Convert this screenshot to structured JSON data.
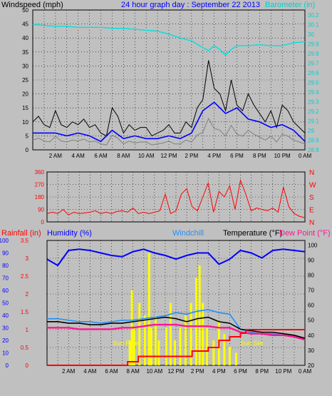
{
  "header": {
    "windspeed_label": "Windspeed (mph)",
    "title": "24 hour graph day : September 22 2013",
    "barometer_label": "Barometer (in)"
  },
  "dir_labels": [
    "N",
    "W",
    "S",
    "E",
    "N"
  ],
  "bottom_header": {
    "rainfall_label": "Rainfall (in)",
    "humidity_label": "Humidity (%)",
    "windchill_label": "Windchill",
    "temperature_label": "Temperature (°F)",
    "dewpoint_label": "Dew Point (°F)"
  },
  "annotations": {
    "sunrise": "Sun Rise",
    "sunset": "Sun Set"
  },
  "time_ticks": [
    "2 AM",
    "4 AM",
    "6 AM",
    "8 AM",
    "10 AM",
    "12 PM",
    "2 PM",
    "4 PM",
    "6 PM",
    "8 PM",
    "10 PM",
    "0 AM"
  ],
  "colors": {
    "windspeed": "#000000",
    "windavg": "#0000ff",
    "wind_low": "#808080",
    "barometer": "#00e0e0",
    "direction": "#ff0000",
    "humidity": "#0000ff",
    "windchill": "#1e90ff",
    "temperature": "#000000",
    "dewpoint": "#ff1493",
    "rainfall": "#ff0000",
    "solar": "#ffff00"
  },
  "chart_data": [
    {
      "type": "line",
      "title": "24 hour graph day : September 22 2013",
      "ylabel": "Windspeed (mph)",
      "y2label": "Barometer (in)",
      "x_range": [
        0,
        24
      ],
      "ylim": [
        0,
        50
      ],
      "y_ticks": [
        0,
        5,
        10,
        15,
        20,
        25,
        30,
        35,
        40,
        45,
        50
      ],
      "y2lim": [
        28.8,
        30.25
      ],
      "y2_ticks": [
        "28.8",
        "28.9",
        "29",
        "29.1",
        "29.2",
        "29.3",
        "29.4",
        "29.5",
        "29.6",
        "29.7",
        "29.8",
        "29.9",
        "30",
        "30.1",
        "30.2"
      ],
      "grid": true,
      "series": [
        {
          "name": "Windspeed (mph)",
          "axis": "left",
          "x": [
            0,
            0.5,
            1,
            1.5,
            2,
            2.5,
            3,
            3.5,
            4,
            4.5,
            5,
            5.5,
            6,
            6.5,
            7,
            7.5,
            8,
            8.5,
            9,
            9.5,
            10,
            10.5,
            11,
            11.5,
            12,
            12.5,
            13,
            13.5,
            14,
            14.5,
            15,
            15.5,
            16,
            16.5,
            17,
            17.5,
            18,
            18.5,
            19,
            19.5,
            20,
            20.5,
            21,
            21.5,
            22,
            22.5,
            23,
            23.5,
            24
          ],
          "values": [
            10,
            12,
            9,
            8,
            14,
            9,
            8,
            10,
            9,
            11,
            8,
            9,
            6,
            5,
            15,
            12,
            6,
            9,
            7,
            8,
            8,
            5,
            6,
            7,
            9,
            6,
            6,
            10,
            8,
            15,
            18,
            32,
            22,
            20,
            14,
            25,
            16,
            14,
            20,
            16,
            13,
            10,
            14,
            8,
            16,
            14,
            10,
            8,
            6
          ]
        },
        {
          "name": "Wind average",
          "axis": "left",
          "x": [
            0,
            1,
            2,
            3,
            4,
            5,
            6,
            7,
            8,
            9,
            10,
            11,
            12,
            13,
            14,
            15,
            16,
            17,
            18,
            19,
            20,
            21,
            22,
            23,
            24
          ],
          "values": [
            6,
            6,
            6,
            5,
            6,
            5,
            3,
            7,
            4,
            5,
            4,
            4,
            5,
            4,
            6,
            14,
            17,
            13,
            15,
            11,
            10,
            8,
            9,
            7,
            3
          ]
        },
        {
          "name": "Barometer (in)",
          "axis": "right",
          "x": [
            0,
            1,
            2,
            3,
            4,
            5,
            6,
            7,
            8,
            9,
            10,
            11,
            12,
            13,
            14,
            15,
            15.5,
            16,
            16.5,
            17,
            17.5,
            18,
            19,
            20,
            21,
            22,
            23,
            24
          ],
          "values": [
            30.1,
            30.09,
            30.08,
            30.08,
            30.07,
            30.07,
            30.07,
            30.06,
            30.06,
            30.05,
            30.04,
            30.03,
            30.0,
            29.96,
            29.93,
            29.86,
            29.83,
            29.88,
            29.84,
            29.78,
            29.84,
            29.88,
            29.88,
            29.89,
            29.88,
            29.88,
            29.91,
            29.92
          ]
        }
      ]
    },
    {
      "type": "line",
      "ylabel": "Wind direction",
      "ylim": [
        0,
        360
      ],
      "y_ticks": [
        0,
        90,
        180,
        270,
        360
      ],
      "x_range": [
        0,
        24
      ],
      "series": [
        {
          "name": "Direction",
          "x": [
            0,
            0.5,
            1,
            1.5,
            2,
            2.5,
            3,
            3.5,
            4,
            4.5,
            5,
            5.5,
            6,
            6.5,
            7,
            7.5,
            8,
            8.5,
            9,
            9.5,
            10,
            10.5,
            11,
            11.5,
            12,
            12.5,
            13,
            13.5,
            14,
            14.5,
            15,
            15.5,
            16,
            16.5,
            17,
            17.5,
            18,
            18.5,
            19,
            19.5,
            20,
            20.5,
            21,
            21.5,
            22,
            22.5,
            23,
            23.5,
            24
          ],
          "values": [
            60,
            70,
            60,
            90,
            50,
            70,
            60,
            65,
            70,
            80,
            60,
            70,
            60,
            75,
            80,
            70,
            100,
            60,
            70,
            60,
            70,
            80,
            200,
            60,
            80,
            200,
            240,
            110,
            80,
            180,
            280,
            70,
            220,
            180,
            260,
            90,
            300,
            200,
            80,
            100,
            90,
            80,
            100,
            70,
            250,
            110,
            60,
            40,
            30
          ]
        }
      ]
    },
    {
      "type": "line",
      "x_range": [
        0,
        24
      ],
      "y_left_ticks": [
        "0",
        "0.5",
        "1",
        "1.5",
        "2",
        "2.5",
        "3",
        "3.5"
      ],
      "y_humidity_ticks": [
        "0",
        "10",
        "20",
        "30",
        "40",
        "50",
        "60",
        "70",
        "80",
        "90",
        "100"
      ],
      "y_temp_ticks": [
        "20",
        "30",
        "40",
        "50",
        "60",
        "70",
        "80",
        "90",
        "100"
      ],
      "series": [
        {
          "name": "Humidity (%)",
          "axis": "humidity",
          "x": [
            0,
            1,
            2,
            3,
            4,
            5,
            6,
            7,
            8,
            9,
            10,
            11,
            12,
            13,
            14,
            15,
            16,
            17,
            18,
            19,
            20,
            21,
            22,
            23,
            24
          ],
          "values": [
            85,
            80,
            92,
            93,
            92,
            90,
            88,
            87,
            91,
            93,
            90,
            88,
            85,
            88,
            90,
            90,
            81,
            85,
            92,
            90,
            86,
            92,
            93,
            92,
            91
          ]
        },
        {
          "name": "Windchill",
          "axis": "temp",
          "x": [
            0,
            1,
            2,
            3,
            4,
            5,
            6,
            7,
            8,
            9,
            10,
            11,
            12,
            13,
            14,
            15,
            16,
            17,
            18,
            19,
            20,
            21,
            22,
            23,
            24
          ],
          "values": [
            51,
            51,
            50,
            49,
            49,
            48,
            49,
            50,
            50,
            51,
            52,
            53,
            55,
            54,
            56,
            57,
            55,
            54,
            44,
            42,
            41,
            41,
            40,
            39,
            38
          ]
        },
        {
          "name": "Temperature (°F)",
          "axis": "temp",
          "x": [
            0,
            1,
            2,
            3,
            4,
            5,
            6,
            7,
            8,
            9,
            10,
            11,
            12,
            13,
            14,
            15,
            16,
            17,
            18,
            19,
            20,
            21,
            22,
            23,
            24
          ],
          "values": [
            49,
            49,
            48,
            48,
            47,
            47,
            48,
            48,
            49,
            50,
            51,
            52,
            51,
            49,
            51,
            52,
            49,
            48,
            44,
            43,
            42,
            42,
            41,
            40,
            38
          ]
        },
        {
          "name": "Dew Point (°F)",
          "axis": "temp",
          "x": [
            0,
            1,
            2,
            3,
            4,
            5,
            6,
            7,
            8,
            9,
            10,
            11,
            12,
            13,
            14,
            15,
            16,
            17,
            18,
            19,
            20,
            21,
            22,
            23,
            24
          ],
          "values": [
            45,
            45,
            45,
            44,
            44,
            44,
            44,
            45,
            45,
            46,
            47,
            47,
            47,
            46,
            46,
            46,
            45,
            45,
            42,
            41,
            41,
            40,
            40,
            39,
            37
          ]
        },
        {
          "name": "Rainfall (in)",
          "axis": "rain",
          "x": [
            0,
            7,
            7.5,
            8,
            8.5,
            10,
            11,
            12,
            13,
            13.5,
            14,
            15,
            16,
            16.5,
            17,
            18,
            18.5,
            24
          ],
          "values": [
            0,
            0,
            0.1,
            0.1,
            0.25,
            0.25,
            0.25,
            0.25,
            0.25,
            0.4,
            0.4,
            0.5,
            0.7,
            0.7,
            0.8,
            0.9,
            1.0,
            1.0
          ]
        }
      ]
    }
  ]
}
